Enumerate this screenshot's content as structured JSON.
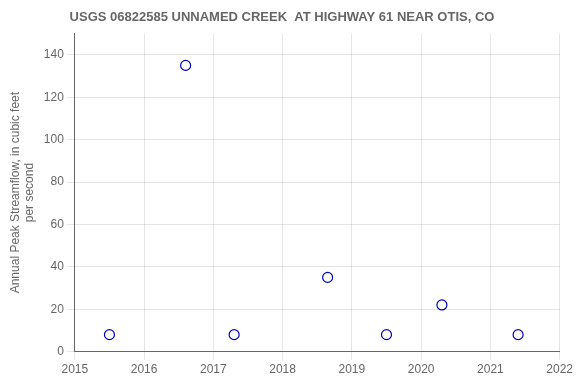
{
  "chart_data": {
    "type": "scatter",
    "title": "USGS 06822585 UNNAMED CREEK  AT HIGHWAY 61 NEAR OTIS, CO",
    "ylabel": "Annual Peak Streamflow, in cubic feet\nper second",
    "x": [
      2015.5,
      2016.6,
      2017.3,
      2018.65,
      2019.5,
      2020.3,
      2021.4
    ],
    "values": [
      8,
      135,
      8,
      35,
      8,
      22,
      8
    ],
    "xlim": [
      2015,
      2022
    ],
    "xticks": [
      2015,
      2016,
      2017,
      2018,
      2019,
      2020,
      2021,
      2022
    ],
    "ylim": [
      0,
      150
    ],
    "yticks": [
      0,
      20,
      40,
      60,
      80,
      100,
      120,
      140
    ],
    "color": "#0000bb",
    "marker": "circle",
    "grid": true
  }
}
